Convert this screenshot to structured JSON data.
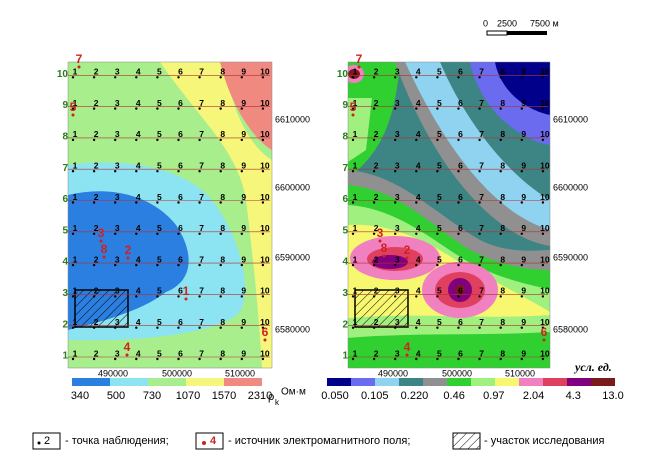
{
  "scale_bar": {
    "labels": [
      "0",
      "2500",
      "7500 м"
    ]
  },
  "point_numbers": [
    1,
    2,
    3,
    4,
    5,
    6,
    7,
    8,
    9,
    10
  ],
  "row_numbers": [
    1,
    2,
    3,
    4,
    5,
    6,
    7,
    8,
    9,
    10
  ],
  "maps": [
    {
      "easting_labels": [
        "490000",
        "500000",
        "510000"
      ],
      "northing_labels": [
        "6610000",
        "6600000",
        "6590000",
        "6580000"
      ],
      "sources": [
        "7",
        "5",
        "3",
        "8",
        "2",
        "1",
        "6",
        "4"
      ],
      "legend": {
        "ticks": [
          "340",
          "500",
          "730",
          "1070",
          "1570",
          "2310"
        ],
        "colors": [
          "#2a7fe0",
          "#8ce4f2",
          "#a8ee8c",
          "#f6f67a",
          "#f08a80"
        ],
        "unit_symbol": "ρ",
        "unit_subscript": "k",
        "unit": "Ом·м"
      }
    },
    {
      "easting_labels": [
        "490000",
        "500000",
        "510000"
      ],
      "northing_labels": [
        "6610000",
        "6600000",
        "6590000",
        "6580000"
      ],
      "sources": [
        "7",
        "5",
        "3",
        "8",
        "2",
        "6",
        "4"
      ],
      "legend": {
        "ticks": [
          "0.050",
          "0.105",
          "0.220",
          "0.46",
          "0.97",
          "2.04",
          "4.3",
          "13.0"
        ],
        "colors": [
          "#00008b",
          "#6b6bef",
          "#8fd3f0",
          "#3d8585",
          "#909090",
          "#30d030",
          "#a0f080",
          "#f8f870",
          "#f080c0",
          "#e04060",
          "#800080",
          "#7a1a1a"
        ],
        "unit": "усл. ед."
      }
    }
  ],
  "bottom_legend": {
    "point_example": "2",
    "point_text": "- точка наблюдения;",
    "source_example": "4",
    "source_text": "- источник электромагнитного поля;",
    "area_text": "- участок исследования"
  }
}
